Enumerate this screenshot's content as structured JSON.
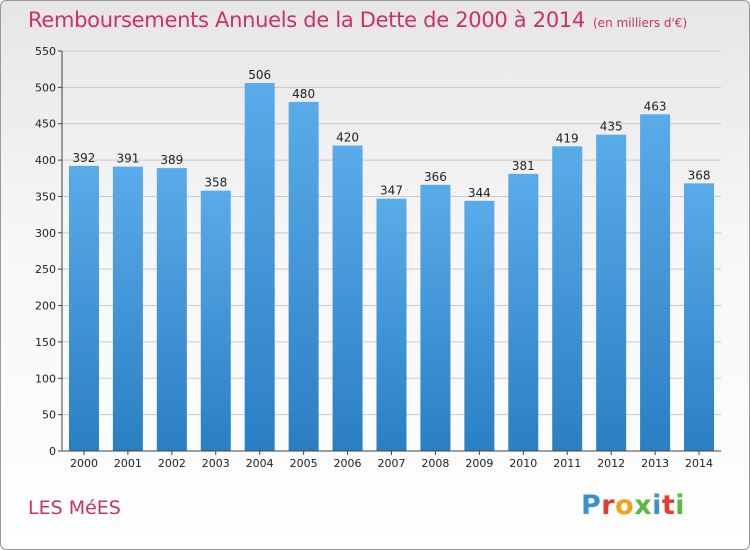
{
  "header": {
    "title": "Remboursements Annuels de la Dette de 2000 à 2014",
    "unit": "(en milliers d'€)"
  },
  "footer": {
    "city": "LES MéES",
    "logo_text": "Proxiti",
    "logo_colors": [
      "#3a8fd6",
      "#e63b2e",
      "#f2a01a",
      "#58b947",
      "#3a8fd6",
      "#e63b2e",
      "#58b947"
    ]
  },
  "colors": {
    "bar_top": "#5aabea",
    "bar_bottom": "#2a7fc3",
    "title": "#d0305e",
    "grid": "#c9c9c9"
  },
  "chart_data": {
    "type": "bar",
    "title": "Remboursements Annuels de la Dette de 2000 à 2014",
    "categories": [
      "2000",
      "2001",
      "2002",
      "2003",
      "2004",
      "2005",
      "2006",
      "2007",
      "2008",
      "2009",
      "2010",
      "2011",
      "2012",
      "2013",
      "2014"
    ],
    "values": [
      392,
      391,
      389,
      358,
      506,
      480,
      420,
      347,
      366,
      344,
      381,
      419,
      435,
      463,
      368
    ],
    "ylim": [
      0,
      550
    ],
    "yticks": [
      0,
      50,
      100,
      150,
      200,
      250,
      300,
      350,
      400,
      450,
      500,
      550
    ],
    "grid": true,
    "legend": "none"
  }
}
